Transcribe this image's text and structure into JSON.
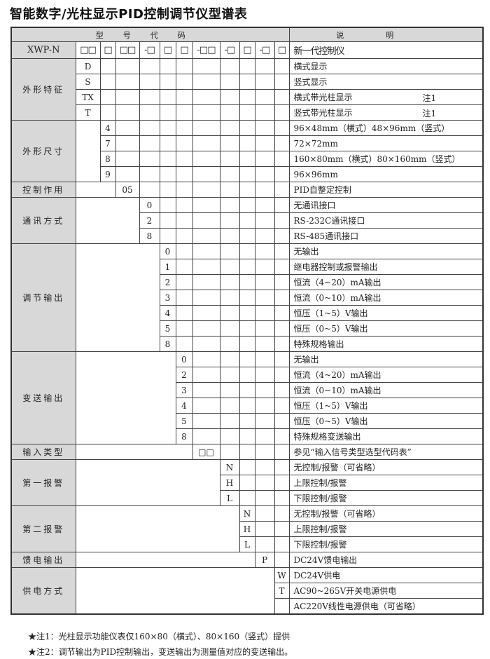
{
  "title": "智能数字/光柱显示PID控制调节仪型谱表",
  "header": {
    "code_label": "型号代码",
    "desc_label": "说明"
  },
  "code_row": {
    "model": "XWP-N",
    "slots": [
      "□□",
      "□",
      "□□",
      "-□",
      "□",
      "□",
      "-□□",
      "-□",
      "□",
      "-□",
      "□"
    ],
    "desc": "新一代控制仪"
  },
  "groups": [
    {
      "label": "外形特征",
      "options": [
        {
          "code": "D",
          "desc": "横式显示"
        },
        {
          "code": "S",
          "desc": "竖式显示"
        },
        {
          "code": "TX",
          "desc": "横式带光柱显示",
          "note": "注1"
        },
        {
          "code": "T",
          "desc": "竖式带光柱显示",
          "note": "注1"
        }
      ]
    },
    {
      "label": "外形尺寸",
      "options": [
        {
          "code": "4",
          "desc": "96×48mm（横式）48×96mm（竖式）"
        },
        {
          "code": "7",
          "desc": "72×72mm"
        },
        {
          "code": "8",
          "desc": "160×80mm（横式）80×160mm（竖式）"
        },
        {
          "code": "9",
          "desc": "96×96mm"
        }
      ]
    },
    {
      "label": "控制作用",
      "options": [
        {
          "code": "05",
          "desc": "PID自整定控制"
        }
      ]
    },
    {
      "label": "通讯方式",
      "options": [
        {
          "code": "0",
          "desc": "无通讯接口"
        },
        {
          "code": "2",
          "desc": "RS-232C通讯接口"
        },
        {
          "code": "8",
          "desc": "RS-485通讯接口"
        }
      ]
    },
    {
      "label": "调节输出",
      "options": [
        {
          "code": "0",
          "desc": "无输出"
        },
        {
          "code": "1",
          "desc": "继电器控制或报警输出"
        },
        {
          "code": "2",
          "desc": "恒流（4~20）mA输出"
        },
        {
          "code": "3",
          "desc": "恒流（0~10）mA输出"
        },
        {
          "code": "4",
          "desc": "恒压（1~5）V输出"
        },
        {
          "code": "5",
          "desc": "恒压（0~5）V输出"
        },
        {
          "code": "8",
          "desc": "特殊规格输出"
        }
      ]
    },
    {
      "label": "变送输出",
      "options": [
        {
          "code": "0",
          "desc": "无输出"
        },
        {
          "code": "2",
          "desc": "恒流（4~20）mA输出"
        },
        {
          "code": "3",
          "desc": "恒流（0~10）mA输出"
        },
        {
          "code": "4",
          "desc": "恒压（1~5）V输出"
        },
        {
          "code": "5",
          "desc": "恒压（0~5）V输出"
        },
        {
          "code": "8",
          "desc": "特殊规格变送输出"
        }
      ]
    },
    {
      "label": "输入类型",
      "options": [
        {
          "code": "□□",
          "desc": "参见“输入信号类型选型代码表”"
        }
      ]
    },
    {
      "label": "第一报警",
      "options": [
        {
          "code": "N",
          "desc": "无控制/报警（可省略）"
        },
        {
          "code": "H",
          "desc": "上限控制/报警"
        },
        {
          "code": "L",
          "desc": "下限控制/报警"
        }
      ]
    },
    {
      "label": "第二报警",
      "options": [
        {
          "code": "N",
          "desc": "无控制/报警（可省略）"
        },
        {
          "code": "H",
          "desc": "上限控制/报警"
        },
        {
          "code": "L",
          "desc": "下限控制/报警"
        }
      ]
    },
    {
      "label": "馈电输出",
      "options": [
        {
          "code": "P",
          "desc": "DC24V馈电输出"
        }
      ]
    },
    {
      "label": "供电方式",
      "options": [
        {
          "code": "W",
          "desc": "DC24V供电"
        },
        {
          "code": "T",
          "desc": "AC90~265V开关电源供电"
        },
        {
          "code": "",
          "desc": "AC220V线性电源供电（可省略）"
        }
      ]
    }
  ],
  "footnotes": [
    "★注1：光柱显示功能仪表仅160×80（横式）、80×160（竖式）提供",
    "★注2：调节输出为PID控制输出，变送输出为测量值对应的变送输出。"
  ]
}
